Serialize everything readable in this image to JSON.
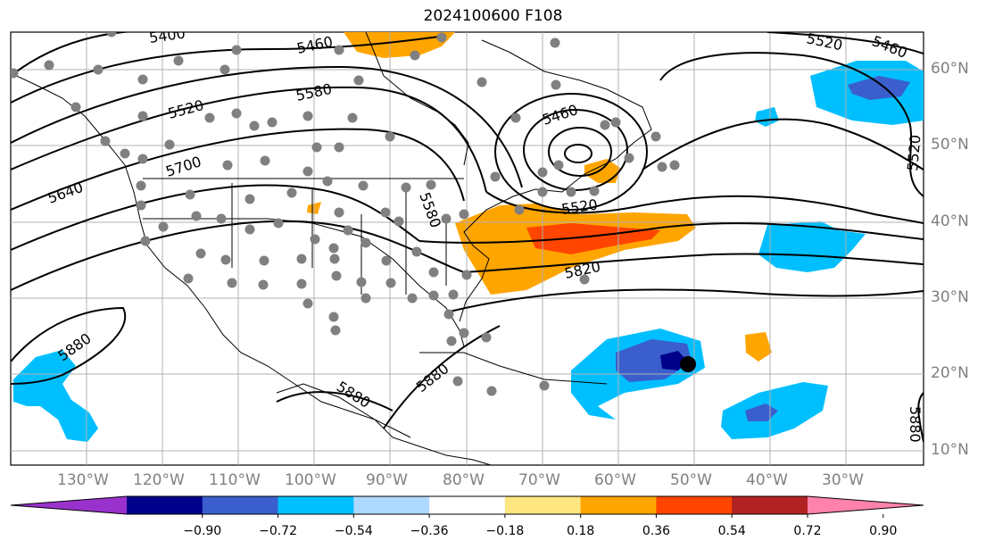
{
  "title": "2024100600 F108",
  "lat_labels": [
    "60°N",
    "50°N",
    "40°N",
    "30°N",
    "20°N",
    "10°N"
  ],
  "lon_labels": [
    "130°W",
    "120°W",
    "110°W",
    "100°W",
    "90°W",
    "80°W",
    "70°W",
    "60°W",
    "50°W",
    "40°W",
    "30°W"
  ],
  "contour_labels": [
    "5400",
    "5460",
    "5520",
    "5580",
    "5640",
    "5700",
    "5460",
    "5520",
    "5580",
    "5820",
    "5880",
    "5880",
    "5880",
    "5460",
    "5520",
    "5880",
    "5520"
  ],
  "colorbar": {
    "colors": [
      "#9932cc",
      "#00008b",
      "#3a5fcd",
      "#00bfff",
      "#add8ff",
      "#ffffff",
      "#ffe680",
      "#ffa500",
      "#ff4500",
      "#b22222",
      "#ff82ab"
    ],
    "ticks": [
      "−0.90",
      "−0.72",
      "−0.54",
      "−0.36",
      "−0.18",
      "0.18",
      "0.36",
      "0.54",
      "0.72",
      "0.90"
    ]
  }
}
